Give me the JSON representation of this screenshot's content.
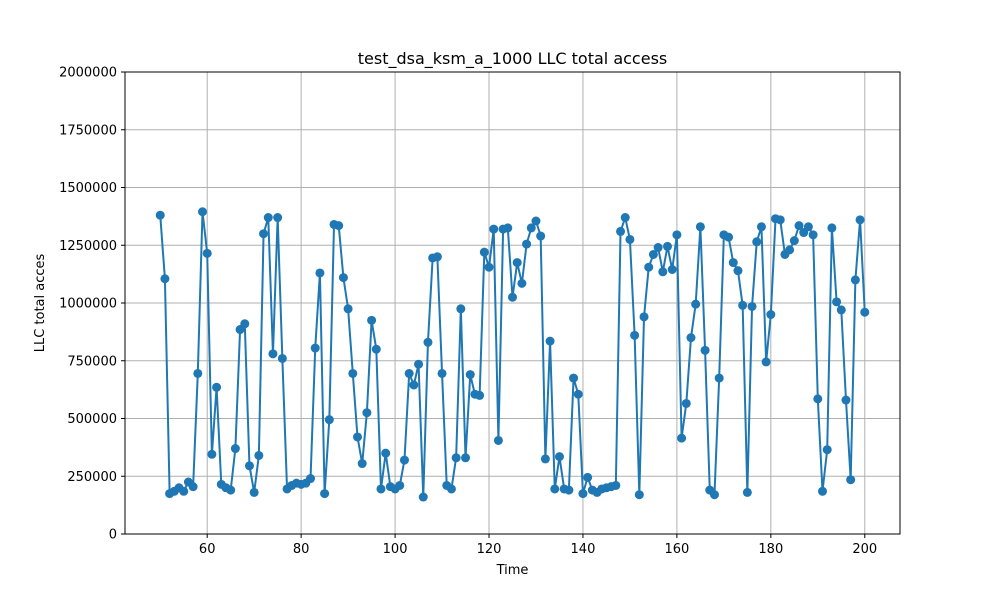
{
  "chart_data": {
    "type": "line",
    "title": "test_dsa_ksm_a_1000 LLC total access",
    "xlabel": "Time",
    "ylabel": "LLC total acces",
    "xlim": [
      42.5,
      207.5
    ],
    "ylim": [
      0,
      2000000
    ],
    "xticks": [
      60,
      80,
      100,
      120,
      140,
      160,
      180,
      200
    ],
    "yticks": [
      0,
      250000,
      500000,
      750000,
      1000000,
      1250000,
      1500000,
      1750000,
      2000000
    ],
    "grid": true,
    "color": "#1f77b4",
    "marker": "circle",
    "series": [
      {
        "x": [
          50,
          51,
          52,
          53,
          54,
          55,
          56,
          57,
          58,
          59,
          60,
          61,
          62,
          63,
          64,
          65,
          66,
          67,
          68,
          69,
          70,
          71,
          72,
          73,
          74,
          75,
          76,
          77,
          78,
          79,
          80,
          81,
          82,
          83,
          84,
          85,
          86,
          87,
          88,
          89,
          90,
          91,
          92,
          93,
          94,
          95,
          96,
          97,
          98,
          99,
          100,
          101,
          102,
          103,
          104,
          105,
          106,
          107,
          108,
          109,
          110,
          111,
          112,
          113,
          114,
          115,
          116,
          117,
          118,
          119,
          120,
          121,
          122,
          123,
          124,
          125,
          126,
          127,
          128,
          129,
          130,
          131,
          132,
          133,
          134,
          135,
          136,
          137,
          138,
          139,
          140,
          141,
          142,
          143,
          144,
          145,
          146,
          147,
          148,
          149,
          150,
          151,
          152,
          153,
          154,
          155,
          156,
          157,
          158,
          159,
          160,
          161,
          162,
          163,
          164,
          165,
          166,
          167,
          168,
          169,
          170,
          171,
          172,
          173,
          174,
          175,
          176,
          177,
          178,
          179,
          180,
          181,
          182,
          183,
          184,
          185,
          186,
          187,
          188,
          189,
          190,
          191,
          192,
          193,
          194,
          195,
          196,
          197,
          198,
          199,
          200
        ],
        "y": [
          1380000,
          1105000,
          175000,
          185000,
          200000,
          185000,
          225000,
          205000,
          695000,
          1395000,
          1215000,
          345000,
          635000,
          215000,
          200000,
          190000,
          370000,
          885000,
          910000,
          295000,
          180000,
          340000,
          1300000,
          1370000,
          780000,
          1370000,
          760000,
          195000,
          210000,
          220000,
          215000,
          220000,
          240000,
          805000,
          1130000,
          175000,
          495000,
          1340000,
          1335000,
          1110000,
          975000,
          695000,
          420000,
          305000,
          525000,
          925000,
          800000,
          195000,
          350000,
          205000,
          195000,
          210000,
          320000,
          695000,
          645000,
          735000,
          160000,
          830000,
          1195000,
          1200000,
          695000,
          210000,
          195000,
          330000,
          975000,
          330000,
          690000,
          605000,
          600000,
          1220000,
          1155000,
          1320000,
          405000,
          1320000,
          1325000,
          1025000,
          1175000,
          1085000,
          1255000,
          1325000,
          1355000,
          1290000,
          325000,
          835000,
          195000,
          335000,
          195000,
          190000,
          675000,
          605000,
          175000,
          245000,
          190000,
          180000,
          195000,
          200000,
          205000,
          210000,
          1310000,
          1370000,
          1275000,
          860000,
          170000,
          940000,
          1155000,
          1210000,
          1240000,
          1135000,
          1245000,
          1145000,
          1295000,
          415000,
          565000,
          850000,
          995000,
          1330000,
          795000,
          190000,
          170000,
          675000,
          1295000,
          1285000,
          1175000,
          1140000,
          990000,
          180000,
          985000,
          1265000,
          1330000,
          745000,
          950000,
          1365000,
          1360000,
          1210000,
          1230000,
          1270000,
          1335000,
          1305000,
          1330000,
          1295000,
          585000,
          185000,
          365000,
          1325000,
          1005000,
          970000,
          580000,
          235000,
          1100000,
          1360000,
          960000
        ]
      }
    ]
  }
}
